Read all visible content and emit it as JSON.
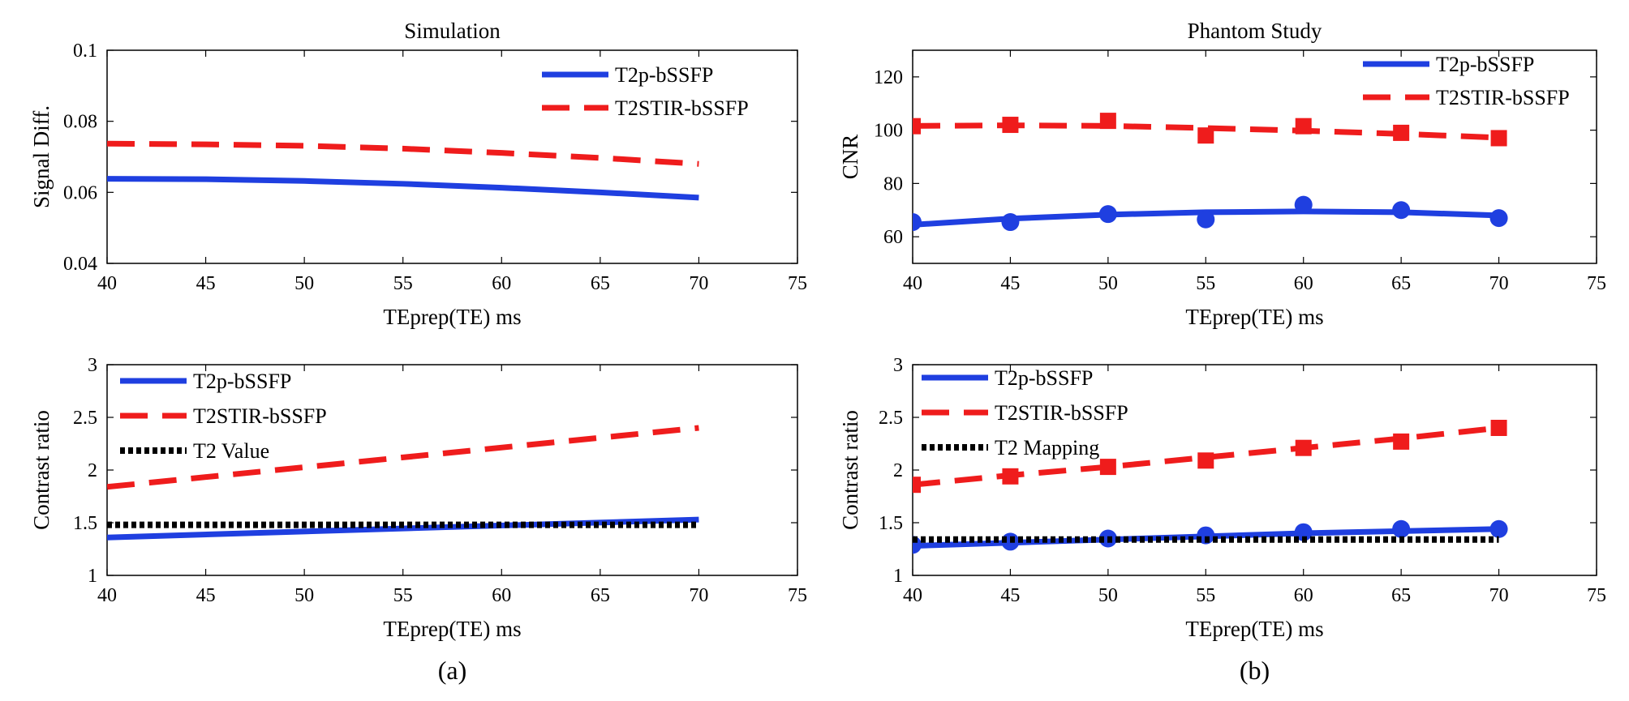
{
  "chart_data": [
    {
      "id": "sim-signal",
      "type": "line",
      "title": "Simulation",
      "xlabel": "TEprep(TE) ms",
      "ylabel": "Signal Diff.",
      "xlim": [
        40,
        75
      ],
      "ylim": [
        0.04,
        0.1
      ],
      "xticks": [
        40,
        45,
        50,
        55,
        60,
        65,
        70,
        75
      ],
      "yticks": [
        0.04,
        0.06,
        0.08,
        0.1
      ],
      "xtick_labels": [
        "40",
        "45",
        "50",
        "55",
        "60",
        "65",
        "70",
        "75"
      ],
      "ytick_labels": [
        "0.04",
        "0.06",
        "0.08",
        "0.1"
      ],
      "legend_position": "top-right",
      "series": [
        {
          "name": "T2p-bSSFP",
          "style": "solid",
          "color": "#1f3fe0",
          "marker": false,
          "x": [
            40,
            45,
            50,
            55,
            60,
            65,
            70
          ],
          "values": [
            0.0638,
            0.0637,
            0.0632,
            0.0624,
            0.0613,
            0.06,
            0.0585
          ]
        },
        {
          "name": "T2STIR-bSSFP",
          "style": "dashed",
          "color": "#ef1c1c",
          "marker": false,
          "x": [
            40,
            45,
            50,
            55,
            60,
            65,
            70
          ],
          "values": [
            0.0737,
            0.0735,
            0.0731,
            0.0723,
            0.0711,
            0.0697,
            0.068
          ]
        }
      ]
    },
    {
      "id": "phantom-cnr",
      "type": "line",
      "title": "Phantom Study",
      "xlabel": "TEprep(TE) ms",
      "ylabel": "CNR",
      "xlim": [
        40,
        75
      ],
      "ylim": [
        50,
        130
      ],
      "xticks": [
        40,
        45,
        50,
        55,
        60,
        65,
        70,
        75
      ],
      "yticks": [
        60,
        80,
        100,
        120
      ],
      "xtick_labels": [
        "40",
        "45",
        "50",
        "55",
        "60",
        "65",
        "70",
        "75"
      ],
      "ytick_labels": [
        "60",
        "80",
        "100",
        "120"
      ],
      "legend_position": "top-right",
      "series": [
        {
          "name": "T2p-bSSFP",
          "style": "solid",
          "color": "#1f3fe0",
          "marker": "circle",
          "x": [
            40,
            45,
            50,
            55,
            60,
            65,
            70
          ],
          "values": [
            65.5,
            65.5,
            68.5,
            66.5,
            72,
            70,
            67
          ],
          "fit": [
            64.5,
            66.8,
            68.3,
            69.2,
            69.5,
            69.2,
            68
          ]
        },
        {
          "name": "T2STIR-bSSFP",
          "style": "dashed",
          "color": "#ef1c1c",
          "marker": "square",
          "x": [
            40,
            45,
            50,
            55,
            60,
            65,
            70
          ],
          "values": [
            101.5,
            102,
            103.5,
            98,
            101.5,
            99,
            97
          ],
          "fit": [
            101.6,
            101.8,
            101.6,
            100.8,
            99.8,
            98.6,
            97.2
          ]
        }
      ]
    },
    {
      "id": "sim-contrast",
      "type": "line",
      "title": "",
      "xlabel": "TEprep(TE) ms",
      "ylabel": "Contrast ratio",
      "xlim": [
        40,
        75
      ],
      "ylim": [
        1,
        3
      ],
      "xticks": [
        40,
        45,
        50,
        55,
        60,
        65,
        70,
        75
      ],
      "yticks": [
        1,
        1.5,
        2,
        2.5,
        3
      ],
      "xtick_labels": [
        "40",
        "45",
        "50",
        "55",
        "60",
        "65",
        "70",
        "75"
      ],
      "ytick_labels": [
        "1",
        "1.5",
        "2",
        "2.5",
        "3"
      ],
      "legend_position": "top-left",
      "series": [
        {
          "name": "T2p-bSSFP",
          "style": "solid",
          "color": "#1f3fe0",
          "marker": false,
          "x": [
            40,
            70
          ],
          "values": [
            1.36,
            1.53
          ]
        },
        {
          "name": "T2STIR-bSSFP",
          "style": "dashed",
          "color": "#ef1c1c",
          "marker": false,
          "x": [
            40,
            70
          ],
          "values": [
            1.84,
            2.4
          ]
        },
        {
          "name": "T2 Value",
          "style": "dotted",
          "color": "#000000",
          "marker": false,
          "x": [
            40,
            70
          ],
          "values": [
            1.48,
            1.48
          ]
        }
      ],
      "caption": "(a)"
    },
    {
      "id": "phantom-contrast",
      "type": "line",
      "title": "",
      "xlabel": "TEprep(TE) ms",
      "ylabel": "Contrast ratio",
      "xlim": [
        40,
        75
      ],
      "ylim": [
        1,
        3
      ],
      "xticks": [
        40,
        45,
        50,
        55,
        60,
        65,
        70,
        75
      ],
      "yticks": [
        1,
        1.5,
        2,
        2.5,
        3
      ],
      "xtick_labels": [
        "40",
        "45",
        "50",
        "55",
        "60",
        "65",
        "70",
        "75"
      ],
      "ytick_labels": [
        "1",
        "1.5",
        "2",
        "2.5",
        "3"
      ],
      "legend_position": "top-left",
      "series": [
        {
          "name": "T2p-bSSFP",
          "style": "solid",
          "color": "#1f3fe0",
          "marker": "circle",
          "x": [
            40,
            45,
            50,
            55,
            60,
            65,
            70
          ],
          "values": [
            1.29,
            1.32,
            1.35,
            1.38,
            1.41,
            1.44,
            1.44
          ],
          "fit": [
            1.28,
            1.31,
            1.34,
            1.37,
            1.4,
            1.42,
            1.44
          ]
        },
        {
          "name": "T2STIR-bSSFP",
          "style": "dashed",
          "color": "#ef1c1c",
          "marker": "square",
          "x": [
            40,
            45,
            50,
            55,
            60,
            65,
            70
          ],
          "values": [
            1.86,
            1.94,
            2.03,
            2.09,
            2.21,
            2.27,
            2.4
          ],
          "fit": [
            1.86,
            1.95,
            2.03,
            2.12,
            2.21,
            2.3,
            2.4
          ]
        },
        {
          "name": "T2 Mapping",
          "style": "dotted",
          "color": "#000000",
          "marker": false,
          "x": [
            40,
            70
          ],
          "values": [
            1.34,
            1.34
          ]
        }
      ],
      "caption": "(b)"
    }
  ]
}
